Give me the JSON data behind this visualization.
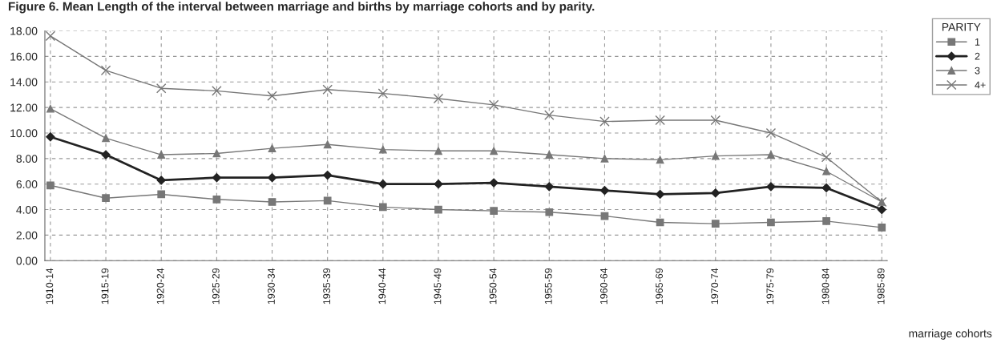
{
  "chart_data": {
    "type": "line",
    "title": "Figure 6. Mean Length of the interval between marriage and births by marriage cohorts and by parity.",
    "xlabel": "marriage cohorts",
    "legend_title": "PARITY",
    "categories": [
      "1910-14",
      "1915-19",
      "1920-24",
      "1925-29",
      "1930-34",
      "1935-39",
      "1940-44",
      "1945-49",
      "1950-54",
      "1955-59",
      "1960-64",
      "1965-69",
      "1970-74",
      "1975-79",
      "1980-84",
      "1985-89"
    ],
    "series": [
      {
        "name": "1",
        "color": "#777777",
        "marker": "square",
        "values": [
          5.9,
          4.9,
          5.2,
          4.8,
          4.6,
          4.7,
          4.2,
          4.0,
          3.9,
          3.8,
          3.5,
          3.0,
          2.9,
          3.0,
          3.1,
          2.6
        ]
      },
      {
        "name": "2",
        "color": "#222222",
        "marker": "diamond",
        "values": [
          9.7,
          8.3,
          6.3,
          6.5,
          6.5,
          6.7,
          6.0,
          6.0,
          6.1,
          5.8,
          5.5,
          5.2,
          5.3,
          5.8,
          5.7,
          4.0
        ]
      },
      {
        "name": "3",
        "color": "#777777",
        "marker": "triangle",
        "values": [
          11.9,
          9.6,
          8.3,
          8.4,
          8.8,
          9.1,
          8.7,
          8.6,
          8.6,
          8.3,
          8.0,
          7.9,
          8.2,
          8.3,
          7.0,
          4.6
        ]
      },
      {
        "name": "4+",
        "color": "#777777",
        "marker": "cross",
        "values": [
          17.6,
          14.9,
          13.5,
          13.3,
          12.9,
          13.4,
          13.1,
          12.7,
          12.2,
          11.4,
          10.9,
          11.0,
          11.0,
          10.0,
          8.1,
          4.6
        ]
      }
    ],
    "ylim": [
      0,
      18
    ],
    "yticks": [
      {
        "value": 0,
        "label": "0.00"
      },
      {
        "value": 2,
        "label": "2.00"
      },
      {
        "value": 4,
        "label": "4.00"
      },
      {
        "value": 6,
        "label": "6.00"
      },
      {
        "value": 8,
        "label": "8.00"
      },
      {
        "value": 10,
        "label": "10.00"
      },
      {
        "value": 12,
        "label": "12.00"
      },
      {
        "value": 14,
        "label": "14.00"
      },
      {
        "value": 16,
        "label": "16.00"
      },
      {
        "value": 18,
        "label": "18.00"
      }
    ],
    "grid": true,
    "legend": "top right"
  }
}
